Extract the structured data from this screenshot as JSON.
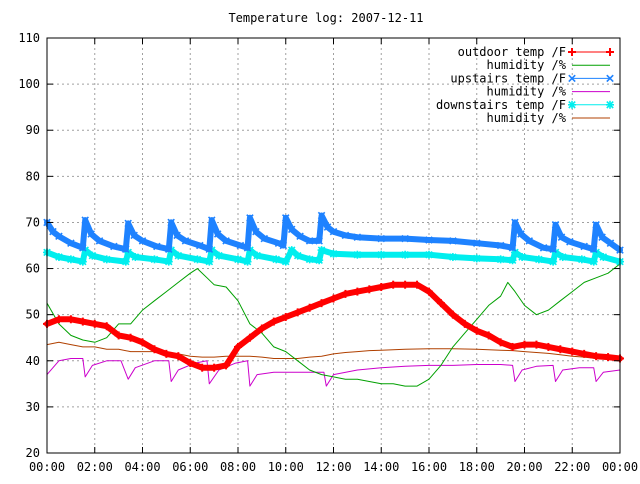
{
  "chart_data": {
    "type": "line",
    "title": "Temperature log: 2007-12-11",
    "xlabel": "",
    "ylabel": "",
    "xlim": [
      0,
      24
    ],
    "ylim": [
      20,
      110
    ],
    "x_ticks": [
      "00:00",
      "02:00",
      "04:00",
      "06:00",
      "08:00",
      "10:00",
      "12:00",
      "14:00",
      "16:00",
      "18:00",
      "20:00",
      "22:00",
      "00:00"
    ],
    "y_ticks": [
      20,
      30,
      40,
      50,
      60,
      70,
      80,
      90,
      100,
      110
    ],
    "grid": true,
    "legend_position": "top-right",
    "series": [
      {
        "name": "outdoor temp /F",
        "color": "#ff0000",
        "marker": "plus",
        "x": [
          0,
          0.5,
          1,
          1.5,
          2,
          2.5,
          3,
          3.5,
          4,
          4.5,
          5,
          5.5,
          6,
          6.5,
          7,
          7.5,
          8,
          8.5,
          9,
          9.5,
          10,
          10.5,
          11,
          11.5,
          12,
          12.5,
          13,
          13.5,
          14,
          14.5,
          15,
          15.5,
          16,
          16.5,
          17,
          17.5,
          18,
          18.5,
          19,
          19.5,
          20,
          20.5,
          21,
          21.5,
          22,
          22.5,
          23,
          23.5,
          24
        ],
        "y": [
          48,
          49,
          49,
          48.5,
          48,
          47.5,
          45.5,
          45,
          44,
          42.5,
          41.5,
          41,
          39.5,
          38.5,
          38.5,
          39,
          43,
          45,
          47,
          48.5,
          49.5,
          50.5,
          51.5,
          52.5,
          53.5,
          54.5,
          55,
          55.5,
          56,
          56.5,
          56.5,
          56.5,
          55,
          52.5,
          50,
          48,
          46.5,
          45.5,
          44,
          43,
          43.5,
          43.5,
          43,
          42.5,
          42,
          41.5,
          41,
          40.8,
          40.5
        ]
      },
      {
        "name": "humidity /%",
        "color": "#00a000",
        "marker": "none",
        "x": [
          0,
          0.5,
          1,
          1.5,
          2,
          2.5,
          3,
          3.5,
          4,
          4.5,
          5,
          5.5,
          6,
          6.3,
          6.7,
          7,
          7.5,
          8,
          8.5,
          9,
          9.5,
          10,
          10.5,
          11,
          11.5,
          12,
          12.5,
          13,
          13.5,
          14,
          14.5,
          15,
          15.5,
          16,
          16.5,
          17,
          17.5,
          18,
          18.5,
          19,
          19.3,
          19.6,
          20,
          20.5,
          21,
          21.5,
          22,
          22.5,
          23,
          23.5,
          24
        ],
        "y": [
          52.5,
          48,
          45.5,
          44.5,
          44,
          45,
          48,
          48,
          51,
          53,
          55,
          57,
          59,
          60,
          58,
          56.5,
          56,
          53,
          48,
          46,
          43,
          42,
          40,
          38,
          37,
          36.5,
          36,
          36,
          35.5,
          35,
          35,
          34.5,
          34.5,
          36,
          39,
          43,
          46,
          49,
          52,
          54,
          57,
          55,
          52,
          50,
          51,
          53,
          55,
          57,
          58,
          59,
          61
        ]
      },
      {
        "name": "upstairs temp /F",
        "color": "#1e82ff",
        "marker": "x",
        "x": [
          0,
          0.25,
          0.5,
          1,
          1.5,
          1.6,
          1.85,
          2.2,
          2.8,
          3.3,
          3.4,
          3.65,
          4,
          4.6,
          5.1,
          5.2,
          5.45,
          5.8,
          6.4,
          6.8,
          6.9,
          7.15,
          7.5,
          8.1,
          8.4,
          8.5,
          8.75,
          9.1,
          9.7,
          9.9,
          10,
          10.25,
          10.6,
          11,
          11.4,
          11.5,
          11.75,
          12,
          12.5,
          13,
          14,
          15,
          16,
          17,
          18,
          19,
          19.5,
          19.6,
          19.85,
          20.2,
          20.8,
          21.2,
          21.3,
          21.55,
          21.9,
          22.5,
          22.9,
          23,
          23.25,
          23.6,
          24
        ],
        "y": [
          70,
          68,
          67,
          65.5,
          64.5,
          70.5,
          67.5,
          66,
          64.8,
          64.2,
          69.8,
          67.2,
          66,
          64.8,
          64.2,
          70,
          67.2,
          66,
          65,
          64.2,
          70.5,
          67.5,
          66,
          65,
          64.5,
          71,
          68,
          66.5,
          65.5,
          65,
          71,
          68.5,
          67,
          66,
          66,
          71.5,
          69,
          68,
          67.2,
          66.8,
          66.5,
          66.5,
          66.2,
          66,
          65.5,
          65,
          64.5,
          70,
          67.5,
          66,
          64.5,
          64.2,
          69.5,
          66.8,
          65.8,
          64.8,
          64.2,
          69.5,
          66.8,
          65.5,
          64
        ]
      },
      {
        "name": "humidity /%",
        "color": "#cc00cc",
        "marker": "none",
        "x": [
          0,
          0.5,
          1,
          1.5,
          1.6,
          1.9,
          2.5,
          3.1,
          3.4,
          3.7,
          4.5,
          5.1,
          5.2,
          5.5,
          6.2,
          6.7,
          6.8,
          7.2,
          7.9,
          8.4,
          8.5,
          8.8,
          9.5,
          10,
          10.5,
          11,
          11.6,
          11.7,
          12,
          13,
          14,
          15,
          16,
          17,
          18,
          19,
          19.5,
          19.6,
          19.9,
          20.5,
          21.2,
          21.3,
          21.6,
          22.3,
          22.9,
          23,
          23.3,
          24
        ],
        "y": [
          37,
          40,
          40.5,
          40.5,
          36.5,
          39,
          40,
          40,
          36,
          38.5,
          40,
          40,
          35.5,
          38,
          39.5,
          40,
          35,
          38,
          39.5,
          40,
          34.5,
          37,
          37.5,
          37.5,
          37.5,
          37.5,
          37.5,
          34.5,
          37,
          38,
          38.5,
          38.8,
          39,
          39,
          39.2,
          39.2,
          39,
          35.5,
          38,
          38.8,
          39,
          35.5,
          38,
          38.5,
          38.5,
          35.5,
          37.5,
          38
        ]
      },
      {
        "name": "downstairs temp /F",
        "color": "#00eeee",
        "marker": "star",
        "x": [
          0,
          0.5,
          1,
          1.5,
          1.6,
          1.9,
          2.5,
          3.3,
          3.4,
          3.7,
          4.5,
          5.1,
          5.2,
          5.5,
          6.3,
          6.8,
          6.9,
          7.2,
          8,
          8.4,
          8.5,
          8.8,
          9.6,
          10,
          10.25,
          10.5,
          11,
          11.4,
          11.5,
          12,
          13,
          14,
          15,
          16,
          17,
          18,
          19,
          19.5,
          19.6,
          19.9,
          20.6,
          21.2,
          21.3,
          21.6,
          22.4,
          22.9,
          23,
          23.3,
          24
        ],
        "y": [
          63.5,
          62.5,
          62,
          61.5,
          64,
          62.8,
          62,
          61.5,
          63.5,
          62.5,
          62,
          61.5,
          64,
          62.8,
          62,
          61.5,
          64,
          62.8,
          62,
          61.5,
          64,
          62.8,
          62,
          61.5,
          64,
          62.8,
          62,
          61.8,
          64,
          63.2,
          63,
          63,
          63,
          63,
          62.5,
          62.2,
          62,
          61.8,
          63.5,
          62.5,
          62,
          61.5,
          63.5,
          62.5,
          62,
          61.5,
          63.5,
          62.5,
          61.5
        ]
      },
      {
        "name": "humidity /%",
        "color": "#b04000",
        "marker": "none",
        "x": [
          0,
          0.5,
          1,
          1.5,
          2,
          2.5,
          3,
          3.5,
          4,
          4.5,
          5,
          5.5,
          6,
          6.5,
          7,
          7.5,
          8,
          8.5,
          9,
          9.5,
          10,
          10.5,
          11,
          11.5,
          12,
          12.5,
          13,
          13.5,
          14,
          15,
          16,
          17,
          18,
          19,
          19.5,
          20,
          20.5,
          21,
          21.5,
          22,
          22.5,
          23,
          23.5,
          24
        ],
        "y": [
          43.5,
          44,
          43.5,
          43,
          43,
          42.5,
          42.5,
          42,
          42,
          42,
          41.5,
          41.5,
          41,
          40.8,
          40.8,
          41,
          41,
          41,
          40.8,
          40.5,
          40.5,
          40.5,
          40.8,
          41,
          41.5,
          41.8,
          42,
          42.2,
          42.3,
          42.5,
          42.6,
          42.6,
          42.5,
          42.3,
          42.2,
          42,
          41.8,
          41.6,
          41.3,
          41,
          40.8,
          40.5,
          40.3,
          40
        ]
      }
    ]
  }
}
